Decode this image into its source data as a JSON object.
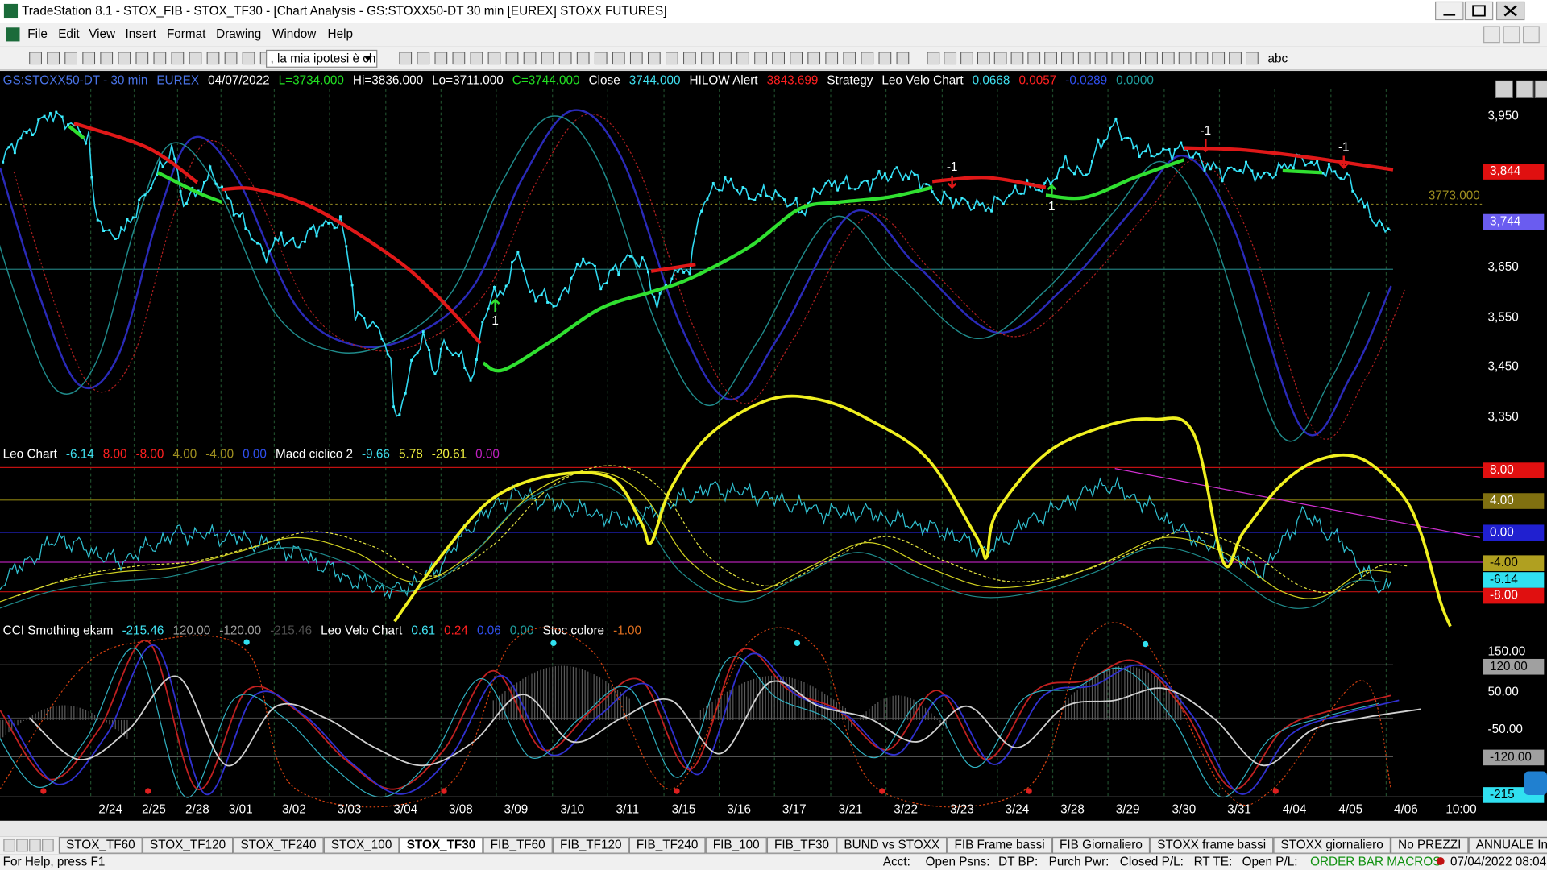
{
  "title_bar": {
    "title": "TradeStation 8.1 - STOX_FIB - STOX_TF30 - [Chart Analysis - GS:STOXX50-DT  30 min  [EUREX] STOXX FUTURES]"
  },
  "menu": [
    "File",
    "Edit",
    "View",
    "Insert",
    "Format",
    "Drawing",
    "Window",
    "Help"
  ],
  "toolbar": {
    "combo": ", la mia ipotesi è ch",
    "text_tool": "abc"
  },
  "price_panel": {
    "header": [
      {
        "text": "GS:STOXX50-DT - 30 min",
        "color": "#4a74e8"
      },
      {
        "text": "EUREX",
        "color": "#4a74e8"
      },
      {
        "text": "04/07/2022",
        "color": "#ffffff"
      },
      {
        "text": "L=3734.000",
        "color": "#22e022"
      },
      {
        "text": "Hi=3836.000",
        "color": "#ffffff"
      },
      {
        "text": "Lo=3711.000",
        "color": "#ffffff"
      },
      {
        "text": "C=3744.000",
        "color": "#22e022"
      },
      {
        "text": "Close",
        "color": "#ffffff"
      },
      {
        "text": "3744.000",
        "color": "#40e0f0"
      },
      {
        "text": "HILOW Alert",
        "color": "#ffffff"
      },
      {
        "text": "3843.699",
        "color": "#ff2020"
      },
      {
        "text": "Strategy",
        "color": "#ffffff"
      },
      {
        "text": "Leo Velo Chart",
        "color": "#ffffff"
      },
      {
        "text": "0.0668",
        "color": "#40e0f0"
      },
      {
        "text": "0.0057",
        "color": "#ff2020"
      },
      {
        "text": "-0.0289",
        "color": "#3050f0"
      },
      {
        "text": "0.0000",
        "color": "#20a0a0"
      }
    ],
    "axis_labels": [
      "3,950",
      "3,650",
      "3,550",
      "3,450",
      "3,350"
    ],
    "hilow_price": {
      "text": "3,844",
      "color": "#e01010",
      "text_color": "#ffffff"
    },
    "last_price": {
      "text": "3,744",
      "color": "#6a5cf0",
      "text_color": "#ffffff"
    },
    "level": {
      "text": "3773.000",
      "color": "#a09020"
    },
    "signals": [
      "-1",
      "-1",
      "-1",
      "1",
      "1"
    ]
  },
  "leo_panel": {
    "header": [
      {
        "text": "Leo Chart",
        "color": "#ffffff"
      },
      {
        "text": "-6.14",
        "color": "#40e0f0"
      },
      {
        "text": "8.00",
        "color": "#ff2020"
      },
      {
        "text": "-8.00",
        "color": "#ff2020"
      },
      {
        "text": "4.00",
        "color": "#a09020"
      },
      {
        "text": "-4.00",
        "color": "#a09020"
      },
      {
        "text": "0.00",
        "color": "#3050f0"
      },
      {
        "text": "Macd ciclico 2",
        "color": "#ffffff"
      },
      {
        "text": "-9.66",
        "color": "#40e0f0"
      },
      {
        "text": "5.78",
        "color": "#f0f040"
      },
      {
        "text": "-20.61",
        "color": "#f0f040"
      },
      {
        "text": "0.00",
        "color": "#c020c0"
      }
    ],
    "axis_boxes": [
      {
        "text": "8.00",
        "color": "#e01010",
        "text_color": "#ffffff"
      },
      {
        "text": "4.00",
        "color": "#807010",
        "text_color": "#ffffff"
      },
      {
        "text": "0.00",
        "color": "#2020d0",
        "text_color": "#ffffff"
      },
      {
        "text": "-4.00",
        "color": "#b0a020",
        "text_color": "#000000"
      },
      {
        "text": "-6.14",
        "color": "#30e0f0",
        "text_color": "#000000"
      },
      {
        "text": "-8.00",
        "color": "#e01010",
        "text_color": "#ffffff"
      }
    ]
  },
  "cci_panel": {
    "header": [
      {
        "text": "CCI Smothing ekam",
        "color": "#ffffff"
      },
      {
        "text": "-215.46",
        "color": "#40e0f0"
      },
      {
        "text": "120.00",
        "color": "#a0a0a0"
      },
      {
        "text": "-120.00",
        "color": "#a0a0a0"
      },
      {
        "text": "-215.46",
        "color": "#505050"
      },
      {
        "text": "Leo Velo Chart",
        "color": "#ffffff"
      },
      {
        "text": "0.61",
        "color": "#40e0f0"
      },
      {
        "text": "0.24",
        "color": "#ff2020"
      },
      {
        "text": "0.06",
        "color": "#3050f0"
      },
      {
        "text": "0.00",
        "color": "#20a0a0"
      },
      {
        "text": "Stoc colore",
        "color": "#ffffff"
      },
      {
        "text": "-1.00",
        "color": "#e07020"
      }
    ],
    "axis_labels": [
      "150.00",
      "50.00",
      "-50.00"
    ],
    "axis_boxes": [
      {
        "text": "120.00",
        "color": "#a0a0a0",
        "text_color": "#000000"
      },
      {
        "text": "-120.00",
        "color": "#a0a0a0",
        "text_color": "#000000"
      },
      {
        "text": "-215",
        "color": "#30e0f0",
        "text_color": "#000000"
      }
    ]
  },
  "date_axis": [
    "2/24",
    "2/25",
    "2/28",
    "3/01",
    "3/02",
    "3/03",
    "3/04",
    "3/08",
    "3/09",
    "3/10",
    "3/11",
    "3/15",
    "3/16",
    "3/17",
    "3/21",
    "3/22",
    "3/23",
    "3/24",
    "3/28",
    "3/29",
    "3/30",
    "3/31",
    "4/04",
    "4/05",
    "4/06",
    "10:00"
  ],
  "tabs": [
    "STOX_TF60",
    "STOX_TF120",
    "STOX_TF240",
    "STOX_100",
    "STOX_TF30",
    "FIB_TF60",
    "FIB_TF120",
    "FIB_TF240",
    "FIB_100",
    "FIB_TF30",
    "BUND vs STOXX",
    "FIB Frame bassi",
    "FIB Giornaliero",
    "STOXX frame bassi",
    "STOXX giornaliero",
    "No PREZZI",
    "ANNUALE Indici"
  ],
  "active_tab": "STOX_TF30",
  "status_bar": [
    "For Help, press F1",
    "Acct:",
    "Open Psns:",
    "DT BP:",
    "Purch Pwr:",
    "Closed P/L:",
    "RT TE:",
    "Open P/L:",
    "ORDER BAR MACROS",
    "07/04/2022 08:04"
  ]
}
